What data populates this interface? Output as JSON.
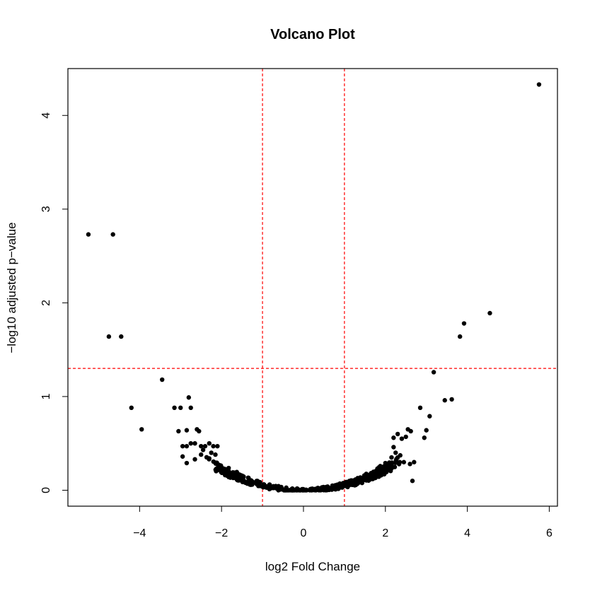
{
  "chart_data": {
    "type": "scatter",
    "title": "Volcano Plot",
    "xlabel": "log2 Fold Change",
    "ylabel": "−log10 adjusted p−value",
    "xlim": [
      -5.75,
      6.2
    ],
    "ylim": [
      -0.17,
      4.5
    ],
    "xticks": [
      -4,
      -2,
      0,
      2,
      4,
      6
    ],
    "xtick_labels": [
      "−4",
      "−2",
      "0",
      "2",
      "4",
      "6"
    ],
    "yticks": [
      0,
      1,
      2,
      3,
      4
    ],
    "ytick_labels": [
      "0",
      "1",
      "2",
      "3",
      "4"
    ],
    "grid": false,
    "point_color": "#000000",
    "threshold_color": "#ff0000",
    "threshold_lines": {
      "vertical_x": [
        -1,
        1
      ],
      "horizontal_y": 1.3
    },
    "series": [
      {
        "points": [
          [
            5.75,
            4.33
          ],
          [
            -5.25,
            2.73
          ],
          [
            -4.65,
            2.73
          ],
          [
            4.55,
            1.89
          ],
          [
            3.92,
            1.78
          ],
          [
            3.82,
            1.64
          ],
          [
            -4.75,
            1.64
          ],
          [
            -4.45,
            1.64
          ],
          [
            3.18,
            1.26
          ],
          [
            -3.45,
            1.18
          ],
          [
            3.45,
            0.96
          ],
          [
            3.62,
            0.97
          ],
          [
            -4.2,
            0.88
          ],
          [
            -3.15,
            0.88
          ],
          [
            -3.0,
            0.88
          ],
          [
            -2.8,
            0.99
          ],
          [
            -2.75,
            0.88
          ],
          [
            3.08,
            0.79
          ],
          [
            2.85,
            0.88
          ],
          [
            3.0,
            0.64
          ],
          [
            2.95,
            0.56
          ],
          [
            -3.95,
            0.65
          ],
          [
            -3.05,
            0.63
          ],
          [
            -2.85,
            0.64
          ],
          [
            -2.6,
            0.65
          ],
          [
            -2.55,
            0.63
          ],
          [
            -2.95,
            0.47
          ],
          [
            -2.85,
            0.47
          ],
          [
            -2.75,
            0.5
          ],
          [
            -2.65,
            0.5
          ],
          [
            -2.5,
            0.47
          ],
          [
            -2.4,
            0.47
          ],
          [
            -2.3,
            0.5
          ],
          [
            -2.2,
            0.47
          ],
          [
            -2.1,
            0.47
          ],
          [
            -2.95,
            0.36
          ],
          [
            -2.85,
            0.29
          ],
          [
            -2.65,
            0.33
          ],
          [
            -2.5,
            0.38
          ],
          [
            -2.45,
            0.43
          ],
          [
            -2.3,
            0.34
          ],
          [
            -2.25,
            0.4
          ],
          [
            -2.15,
            0.38
          ],
          [
            2.2,
            0.56
          ],
          [
            2.3,
            0.6
          ],
          [
            2.4,
            0.55
          ],
          [
            2.5,
            0.57
          ],
          [
            2.55,
            0.65
          ],
          [
            2.62,
            0.63
          ],
          [
            2.66,
            0.1
          ],
          [
            2.7,
            0.3
          ],
          [
            2.6,
            0.28
          ],
          [
            2.45,
            0.3
          ],
          [
            2.35,
            0.3
          ],
          [
            2.25,
            0.4
          ],
          [
            2.2,
            0.46
          ],
          [
            2.15,
            0.35
          ],
          [
            2.0,
            0.29
          ],
          [
            2.05,
            0.22
          ]
        ]
      }
    ]
  }
}
